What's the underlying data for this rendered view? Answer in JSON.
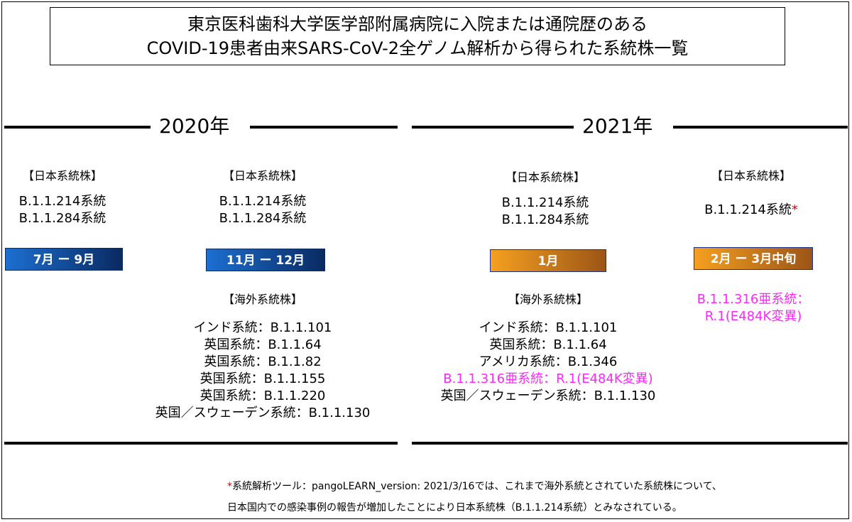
{
  "title": {
    "line1": "東京医科歯科大学医学部附属病院に入院または通院歴のある",
    "line2": "COVID-19患者由来SARS-CoV-2全ゲノム解析から得られた系統株一覧"
  },
  "years": {
    "y2020": "2020年",
    "y2021": "2021年"
  },
  "periods": [
    {
      "domestic_heading": "【日本系統株】",
      "domestic": [
        "B.1.1.214系統",
        "B.1.1.284系統"
      ],
      "bar": "7月 ー 9月",
      "bar_color": "#1c6fd1"
    },
    {
      "domestic_heading": "【日本系統株】",
      "domestic": [
        "B.1.1.214系統",
        "B.1.1.284系統"
      ],
      "bar": "11月 ー 12月",
      "bar_color": "#1c6fd1",
      "foreign_heading": "【海外系統株】",
      "foreign": [
        "インド系統：B.1.1.101",
        "英国系統：B.1.1.64",
        "英国系統：B.1.1.82",
        "英国系統：B.1.1.155",
        "英国系統：B.1.1.220",
        "英国／スウェーデン系統：B.1.1.130"
      ]
    },
    {
      "domestic_heading": "【日本系統株】",
      "domestic": [
        "B.1.1.214系統",
        "B.1.1.284系統"
      ],
      "bar": "1月",
      "bar_color": "#f5a020",
      "foreign_heading": "【海外系統株】",
      "foreign": [
        "インド系統：B.1.1.101",
        "英国系統：B.1.1.64",
        "アメリカ系統：B.1.346",
        "B.1.1.316亜系統：R.1(E484K変異)",
        "英国／スウェーデン系統：B.1.1.130"
      ]
    },
    {
      "domestic_heading": "【日本系統株】",
      "domestic": [
        "B.1.1.214系統"
      ],
      "domestic_mark": "*",
      "bar": "2月 ー 3月中旬",
      "bar_color": "#f5a020",
      "variant": [
        "B.1.1.316亜系統：",
        "R.1(E484K変異)"
      ]
    }
  ],
  "highlight_color": "#ff26ff",
  "footnote": {
    "mark": "*",
    "line1": "系統解析ツール：pangoLEARN_version: 2021/3/16では、これまで海外系統とされていた系統株について、",
    "line2": "日本国内での感染事例の報告が増加したことにより日本系統株（B.1.1.214系統）とみなされている。"
  }
}
